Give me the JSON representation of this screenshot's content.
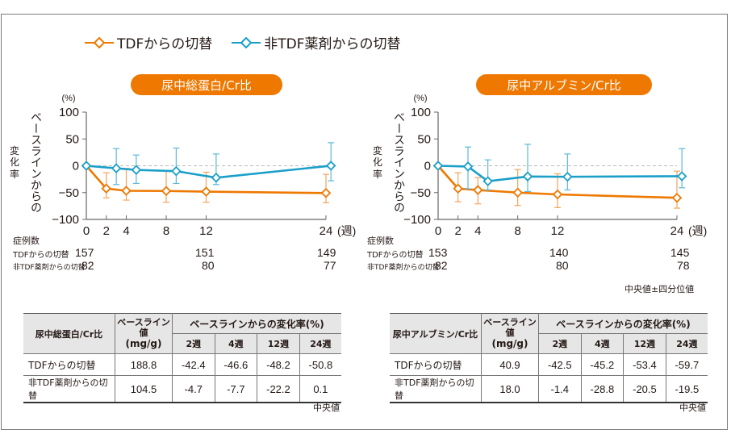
{
  "legend": {
    "tdf": {
      "label": "TDFからの切替",
      "color": "#ee7800",
      "icon": "diamond-line-icon"
    },
    "non_tdf": {
      "label": "非TDF薬剤からの切替",
      "color": "#1a9fc9",
      "icon": "diamond-line-icon"
    }
  },
  "common": {
    "y_unit": "(%)",
    "y_label_line1": "ベースラインからの",
    "y_label_line2": "変化率",
    "x_unit": "(週)",
    "n_title": "症例数",
    "n_row_tdf": "TDFからの切替",
    "n_row_non_tdf": "非TDF薬剤からの切替",
    "error_note": "中央値±四分位値",
    "table_note": "中央値",
    "table_baseline_header": "ベースライン値",
    "table_baseline_unit": "(mg/g)",
    "table_change_header": "ベースラインからの変化率(%)",
    "table_weeks": [
      "2週",
      "4週",
      "12週",
      "24週"
    ]
  },
  "chart_data": [
    {
      "type": "line",
      "title": "尿中総蛋白/Cr比",
      "xlabel": "(週)",
      "ylabel": "ベースラインからの変化率 (%)",
      "ylim": [
        -100,
        100
      ],
      "yticks": [
        100,
        50,
        0,
        -50,
        -100
      ],
      "xticks": [
        0,
        2,
        4,
        8,
        12,
        24
      ],
      "xlim": [
        0,
        24
      ],
      "error_bars": "median ± interquartile",
      "reference_line": 0,
      "series": [
        {
          "name": "TDFからの切替",
          "color": "#ee7800",
          "x": [
            0,
            2,
            4,
            8,
            12,
            24
          ],
          "values": [
            0,
            -42.4,
            -46.6,
            -47,
            -48.2,
            -50.8
          ],
          "lower": [
            null,
            -60,
            -64,
            -68,
            -68,
            -69
          ],
          "upper": [
            null,
            -13,
            -5,
            -10,
            -12,
            -16
          ]
        },
        {
          "name": "非TDF薬剤からの切替",
          "color": "#1a9fc9",
          "x": [
            0,
            3,
            5,
            9,
            13,
            24.5
          ],
          "values": [
            0,
            -4.7,
            -7.7,
            -10,
            -22.2,
            0.1
          ],
          "lower": [
            null,
            -35,
            -33,
            -33,
            -35,
            -28
          ],
          "upper": [
            null,
            32,
            20,
            33,
            22,
            43
          ]
        }
      ],
      "n_counts": {
        "weeks": [
          0,
          12,
          24
        ],
        "tdf": [
          "157",
          "151",
          "149"
        ],
        "non_tdf": [
          "82",
          "80",
          "77"
        ]
      },
      "table": {
        "header": "尿中総蛋白/Cr比",
        "rows": [
          {
            "label": "TDFからの切替",
            "baseline": "188.8",
            "changes": [
              "-42.4",
              "-46.6",
              "-48.2",
              "-50.8"
            ]
          },
          {
            "label": "非TDF薬剤からの切替",
            "baseline": "104.5",
            "changes": [
              "-4.7",
              "-7.7",
              "-22.2",
              "0.1"
            ]
          }
        ]
      }
    },
    {
      "type": "line",
      "title": "尿中アルブミン/Cr比",
      "xlabel": "(週)",
      "ylabel": "ベースラインからの変化率 (%)",
      "ylim": [
        -100,
        100
      ],
      "yticks": [
        100,
        50,
        0,
        -50,
        -100
      ],
      "xticks": [
        0,
        2,
        4,
        8,
        12,
        24
      ],
      "xlim": [
        0,
        24
      ],
      "error_bars": "median ± interquartile",
      "reference_line": 0,
      "series": [
        {
          "name": "TDFからの切替",
          "color": "#ee7800",
          "x": [
            0,
            2,
            4,
            8,
            12,
            24
          ],
          "values": [
            0,
            -42.5,
            -45.2,
            -50,
            -53.4,
            -59.7
          ],
          "lower": [
            null,
            -67,
            -71,
            -74,
            -78,
            -79
          ],
          "upper": [
            null,
            -13,
            -22,
            -7,
            -15,
            -10
          ]
        },
        {
          "name": "非TDF薬剤からの切替",
          "color": "#1a9fc9",
          "x": [
            0,
            3,
            5,
            9,
            13,
            24.5
          ],
          "values": [
            0,
            -1.4,
            -28.8,
            -20,
            -20.5,
            -19.5
          ],
          "lower": [
            null,
            -43,
            -45,
            -48,
            -45,
            -41
          ],
          "upper": [
            null,
            35,
            11,
            40,
            22,
            32
          ]
        }
      ],
      "n_counts": {
        "weeks": [
          0,
          12,
          24
        ],
        "tdf": [
          "153",
          "140",
          "145"
        ],
        "non_tdf": [
          "82",
          "80",
          "78"
        ]
      },
      "table": {
        "header": "尿中アルブミン/Cr比",
        "rows": [
          {
            "label": "TDFからの切替",
            "baseline": "40.9",
            "changes": [
              "-42.5",
              "-45.2",
              "-53.4",
              "-59.7"
            ]
          },
          {
            "label": "非TDF薬剤からの切替",
            "baseline": "18.0",
            "changes": [
              "-1.4",
              "-28.8",
              "-20.5",
              "-19.5"
            ]
          }
        ]
      }
    }
  ]
}
